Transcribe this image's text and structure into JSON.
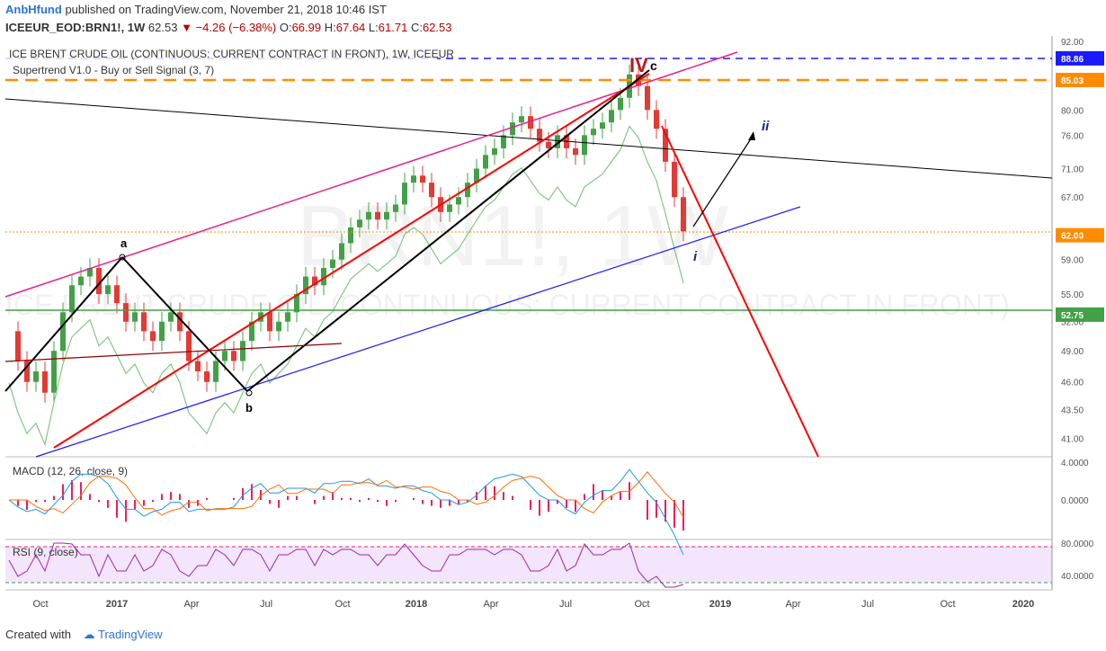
{
  "header": {
    "author": "AnbHfund",
    "published_text": "published on TradingView.com, November 21, 2018 10:46 IST"
  },
  "symbol_bar": {
    "symbol": "ICEEUR_EOD:BRN1!, 1W",
    "last": "62.53",
    "change": "−4.26 (−6.38%)",
    "o_label": "O:",
    "o": "66.99",
    "h_label": "H:",
    "h": "67.64",
    "l_label": "L:",
    "l": "61.71",
    "c_label": "C:",
    "c": "62.53"
  },
  "chart_data": [
    {
      "type": "candlestick",
      "title": "ICE BRENT CRUDE OIL (CONTINUOUS: CURRENT CONTRACT IN FRONT), 1W, ICEEUR",
      "watermark_symbol": "BRN1!, 1W",
      "watermark_name": "ICE BRENT CRUDE OIL (CONTINUOUS: CURRENT CONTRACT IN FRONT)",
      "indicator_label": "Supertrend V1.0 - Buy or Sell Signal (3, 7)",
      "y_ticks": [
        "92.00",
        "85.00",
        "80.00",
        "76.00",
        "71.00",
        "67.00",
        "62.00",
        "59.00",
        "55.00",
        "52.00",
        "49.00",
        "46.00",
        "43.50",
        "41.00"
      ],
      "x_ticks": [
        "Oct",
        "2017",
        "Apr",
        "Jul",
        "Oct",
        "2018",
        "Apr",
        "Jul",
        "Oct",
        "2019",
        "Apr",
        "Jul",
        "Oct",
        "2020"
      ],
      "axis_scale": "log",
      "ylim": [
        39.5,
        93
      ],
      "price_labels": [
        {
          "value": "88.86",
          "color": "#1a1aff"
        },
        {
          "value": "85.03",
          "color": "#ff8c00"
        },
        {
          "value": "62.00",
          "color": "#ff8c00"
        },
        {
          "value": "52.75",
          "color": "#43a047"
        }
      ],
      "wave_labels": [
        "a",
        "b",
        "IV",
        "c",
        "ii",
        "i"
      ],
      "close_series_approx": [
        51,
        48,
        46,
        47,
        45,
        49,
        53,
        56,
        57,
        58,
        55,
        56,
        54,
        52,
        53,
        51,
        50,
        52,
        53,
        51,
        48,
        47,
        46,
        48,
        49,
        48,
        50,
        52,
        53,
        51,
        52,
        53,
        55,
        57,
        56,
        58,
        59,
        61,
        63,
        64,
        65,
        64,
        65,
        66,
        69,
        70,
        69,
        67,
        65,
        66,
        67,
        69,
        71,
        73,
        74,
        76,
        78,
        79,
        77,
        75,
        74,
        76,
        74,
        73,
        76,
        77,
        78,
        80,
        82,
        86,
        84,
        80,
        77,
        72,
        67,
        62.5
      ],
      "colors": {
        "up": "#43a047",
        "down": "#e53935"
      }
    },
    {
      "type": "line",
      "title": "MACD (12, 26, close, 9)",
      "y_ticks": [
        "4.0000",
        "0.0000"
      ],
      "series": [
        {
          "name": "",
          "color": "#2196f3"
        },
        {
          "name": "",
          "color": "#ff6d00"
        }
      ],
      "histogram_color": "#e91e63"
    },
    {
      "type": "line",
      "title": "RSI (9, close)",
      "y_ticks": [
        "80.0000",
        "40.0000"
      ],
      "levels": [
        70,
        30
      ],
      "series": [
        {
          "name": "",
          "color": "#9c27b0"
        }
      ]
    }
  ],
  "footer": {
    "created_with": "Created with",
    "brand": "TradingView"
  }
}
